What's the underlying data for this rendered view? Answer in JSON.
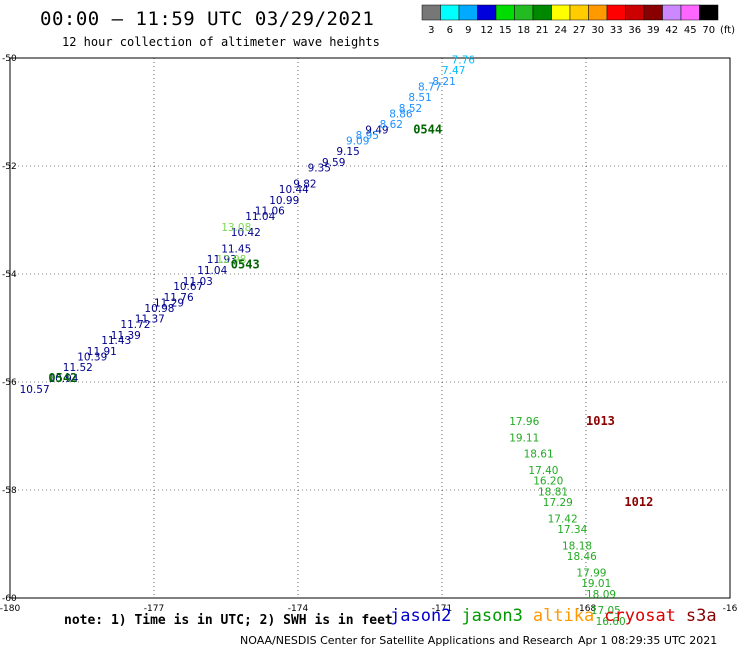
{
  "header": {
    "title": "00:00 – 11:59 UTC 03/29/2021",
    "subtitle": "12 hour collection of altimeter wave heights"
  },
  "colorbar": {
    "unit_label": "(ft)",
    "bins": [
      {
        "label": "3",
        "color": "#777777"
      },
      {
        "label": "6",
        "color": "#00ffff"
      },
      {
        "label": "9",
        "color": "#00aaff"
      },
      {
        "label": "12",
        "color": "#0000dd"
      },
      {
        "label": "15",
        "color": "#00dd00"
      },
      {
        "label": "18",
        "color": "#22bb22"
      },
      {
        "label": "21",
        "color": "#008800"
      },
      {
        "label": "24",
        "color": "#ffff00"
      },
      {
        "label": "27",
        "color": "#ffcc00"
      },
      {
        "label": "30",
        "color": "#ff9900"
      },
      {
        "label": "33",
        "color": "#ff0000"
      },
      {
        "label": "36",
        "color": "#cc0000"
      },
      {
        "label": "39",
        "color": "#880000"
      },
      {
        "label": "42",
        "color": "#cc88ff"
      },
      {
        "label": "45",
        "color": "#ff66ff"
      },
      {
        "label": "70",
        "color": "#000000"
      }
    ]
  },
  "map": {
    "lon_range": [
      -180,
      -165
    ],
    "lat_range": [
      -60,
      -50
    ],
    "lon_ticks": [
      "-180",
      "-177",
      "-174",
      "-171",
      "-168",
      "-16"
    ],
    "lat_ticks": [
      "-50",
      "-52",
      "-54",
      "-56",
      "-58",
      "-60"
    ],
    "jason2_track": [
      {
        "lon": -179.8,
        "lat": -56.2,
        "label": "10.57",
        "color": "#00008b"
      },
      {
        "lon": -179.2,
        "lat": -56.0,
        "label": "10.94",
        "color": "#00008b"
      },
      {
        "lon": -178.9,
        "lat": -55.8,
        "label": "11.52",
        "color": "#00008b"
      },
      {
        "lon": -178.6,
        "lat": -55.6,
        "label": "10.39",
        "color": "#00008b"
      },
      {
        "lon": -178.4,
        "lat": -55.5,
        "label": "11.91",
        "color": "#00008b"
      },
      {
        "lon": -178.1,
        "lat": -55.3,
        "label": "11.43",
        "color": "#00008b"
      },
      {
        "lon": -177.9,
        "lat": -55.2,
        "label": "11.39",
        "color": "#00008b"
      },
      {
        "lon": -177.7,
        "lat": -55.0,
        "label": "11.72",
        "color": "#00008b"
      },
      {
        "lon": -177.4,
        "lat": -54.9,
        "label": "11.37",
        "color": "#00008b"
      },
      {
        "lon": -177.2,
        "lat": -54.7,
        "label": "10.98",
        "color": "#00008b"
      },
      {
        "lon": -177.0,
        "lat": -54.6,
        "label": "11.29",
        "color": "#00008b"
      },
      {
        "lon": -176.8,
        "lat": -54.5,
        "label": "11.76",
        "color": "#00008b"
      },
      {
        "lon": -176.6,
        "lat": -54.3,
        "label": "10.67",
        "color": "#00008b"
      },
      {
        "lon": -176.4,
        "lat": -54.2,
        "label": "11.03",
        "color": "#00008b"
      },
      {
        "lon": -176.1,
        "lat": -54.0,
        "label": "11.04",
        "color": "#00008b"
      },
      {
        "lon": -175.9,
        "lat": -53.8,
        "label": "11.93",
        "color": "#00008b"
      },
      {
        "lon": -175.6,
        "lat": -53.6,
        "label": "11.45",
        "color": "#00008b"
      },
      {
        "lon": -175.4,
        "lat": -53.3,
        "label": "10.42",
        "color": "#00008b"
      },
      {
        "lon": -175.1,
        "lat": -53.0,
        "label": "11.04",
        "color": "#00008b"
      },
      {
        "lon": -174.9,
        "lat": -52.9,
        "label": "11.06",
        "color": "#00008b"
      },
      {
        "lon": -174.6,
        "lat": -52.7,
        "label": "10.99",
        "color": "#00008b"
      },
      {
        "lon": -174.4,
        "lat": -52.5,
        "label": "10.44",
        "color": "#00008b"
      },
      {
        "lon": -174.1,
        "lat": -52.4,
        "label": "9.82",
        "color": "#00008b"
      },
      {
        "lon": -173.8,
        "lat": -52.1,
        "label": "9.35",
        "color": "#00008b"
      },
      {
        "lon": -173.5,
        "lat": -52.0,
        "label": "9.59",
        "color": "#00008b"
      },
      {
        "lon": -173.2,
        "lat": -51.8,
        "label": "9.15",
        "color": "#00008b"
      },
      {
        "lon": -173.0,
        "lat": -51.6,
        "label": "9.09",
        "color": "#1e90ff"
      },
      {
        "lon": -172.8,
        "lat": -51.5,
        "label": "8.95",
        "color": "#1e90ff"
      },
      {
        "lon": -172.6,
        "lat": -51.4,
        "label": "9.49",
        "color": "#00008b"
      },
      {
        "lon": -172.3,
        "lat": -51.3,
        "label": "8.62",
        "color": "#1e90ff"
      },
      {
        "lon": -172.1,
        "lat": -51.1,
        "label": "8.86",
        "color": "#1e90ff"
      },
      {
        "lon": -171.9,
        "lat": -51.0,
        "label": "8.52",
        "color": "#1e90ff"
      },
      {
        "lon": -171.7,
        "lat": -50.8,
        "label": "8.51",
        "color": "#1e90ff"
      },
      {
        "lon": -171.5,
        "lat": -50.6,
        "label": "8.77",
        "color": "#1e90ff"
      },
      {
        "lon": -171.2,
        "lat": -50.5,
        "label": "8.21",
        "color": "#1e90ff"
      },
      {
        "lon": -171.0,
        "lat": -50.3,
        "label": "7.47",
        "color": "#00bfff"
      },
      {
        "lon": -170.8,
        "lat": -50.1,
        "label": "7.76",
        "color": "#00bfff"
      }
    ],
    "jason2_extra": [
      {
        "lon": -175.6,
        "lat": -53.2,
        "label": "13.08",
        "color": "#7ed957"
      },
      {
        "lon": -175.7,
        "lat": -53.8,
        "label": "12.98",
        "color": "#7ed957"
      }
    ],
    "jason3_track": [
      {
        "lon": -169.6,
        "lat": -56.8,
        "label": "17.96"
      },
      {
        "lon": -169.6,
        "lat": -57.1,
        "label": "19.11"
      },
      {
        "lon": -169.3,
        "lat": -57.4,
        "label": "18.61"
      },
      {
        "lon": -169.2,
        "lat": -57.7,
        "label": "17.40"
      },
      {
        "lon": -169.1,
        "lat": -57.9,
        "label": "16.20"
      },
      {
        "lon": -169.0,
        "lat": -58.1,
        "label": "18.81"
      },
      {
        "lon": -168.9,
        "lat": -58.3,
        "label": "17.29"
      },
      {
        "lon": -168.8,
        "lat": -58.6,
        "label": "17.42"
      },
      {
        "lon": -168.6,
        "lat": -58.8,
        "label": "17.34"
      },
      {
        "lon": -168.5,
        "lat": -59.1,
        "label": "18.18"
      },
      {
        "lon": -168.4,
        "lat": -59.3,
        "label": "18.46"
      },
      {
        "lon": -168.2,
        "lat": -59.6,
        "label": "17.99"
      },
      {
        "lon": -168.1,
        "lat": -59.8,
        "label": "19.01"
      },
      {
        "lon": -168.0,
        "lat": -60.0,
        "label": "18.09"
      },
      {
        "lon": -167.9,
        "lat": -60.3,
        "label": "17.05"
      },
      {
        "lon": -167.8,
        "lat": -60.5,
        "label": "16.60"
      }
    ],
    "time_labels": [
      {
        "lon": -179.2,
        "lat": -56.0,
        "label": "0542",
        "color": "#006400"
      },
      {
        "lon": -175.4,
        "lat": -53.9,
        "label": "0543",
        "color": "#006400"
      },
      {
        "lon": -171.6,
        "lat": -51.4,
        "label": "0544",
        "color": "#006400"
      },
      {
        "lon": -168.0,
        "lat": -56.8,
        "label": "1013",
        "color": "#8b0000"
      },
      {
        "lon": -167.2,
        "lat": -58.3,
        "label": "1012",
        "color": "#8b0000"
      }
    ]
  },
  "legend": {
    "note": "note: 1) Time is in UTC; 2) SWH is in feet",
    "satellites": [
      {
        "name": "jason2",
        "color": "#0000cc"
      },
      {
        "name": "jason3",
        "color": "#009900"
      },
      {
        "name": "altika",
        "color": "#ff9900"
      },
      {
        "name": "cryosat",
        "color": "#dd0000"
      },
      {
        "name": "s3a",
        "color": "#880000"
      }
    ]
  },
  "footer": {
    "credit": "NOAA/NESDIS Center for Satellite Applications and Research",
    "generated": "Apr  1 08:29:35 UTC 2021"
  }
}
